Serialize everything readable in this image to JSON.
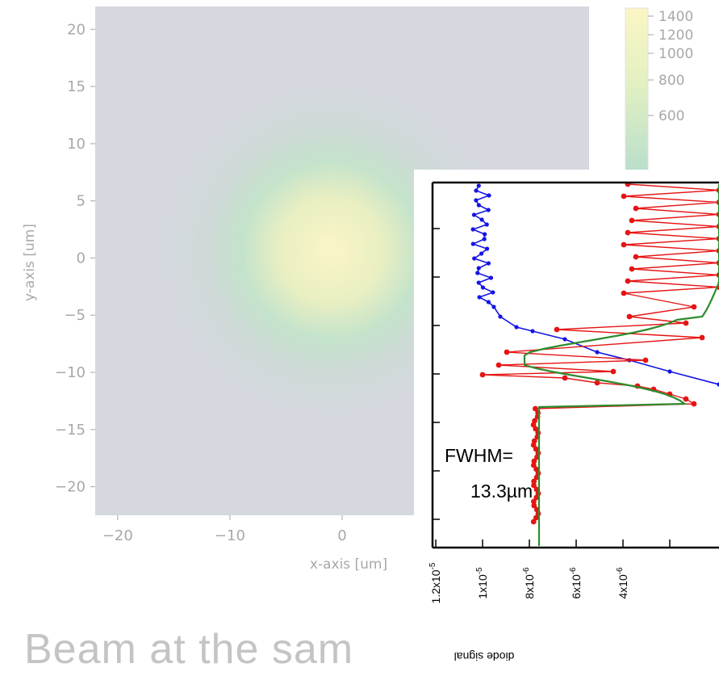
{
  "caption": "Beam at the sam",
  "chart_data": [
    {
      "type": "heatmap",
      "xlabel": "x-axis [um]",
      "ylabel": "y-axis [um]",
      "xlim": [
        -22,
        22
      ],
      "ylim": [
        -22.5,
        22
      ],
      "xticks": [
        -20,
        -10,
        0
      ],
      "yticks": [
        20,
        15,
        10,
        5,
        0,
        -5,
        -10,
        -15,
        -20
      ],
      "peak": {
        "x": 0,
        "y": 1,
        "value": 1400
      },
      "colorbar": {
        "ticks": [
          1400,
          1200,
          1000,
          800,
          600
        ],
        "colors": [
          "#fbf6c4",
          "#d0ecc4",
          "#b6ddcc"
        ]
      }
    },
    {
      "type": "line",
      "ylabel": "diode signal",
      "yticks": [
        "1.2x10-5",
        "1x10-5",
        "8x10-6",
        "6x10-6",
        "4x10-6"
      ],
      "annotation_line1": "FWHM=",
      "annotation_line2": "13.3µm",
      "series": [
        {
          "color": "#1414e6"
        },
        {
          "color": "#e61414"
        },
        {
          "color": "#2e8b2e"
        }
      ]
    }
  ]
}
